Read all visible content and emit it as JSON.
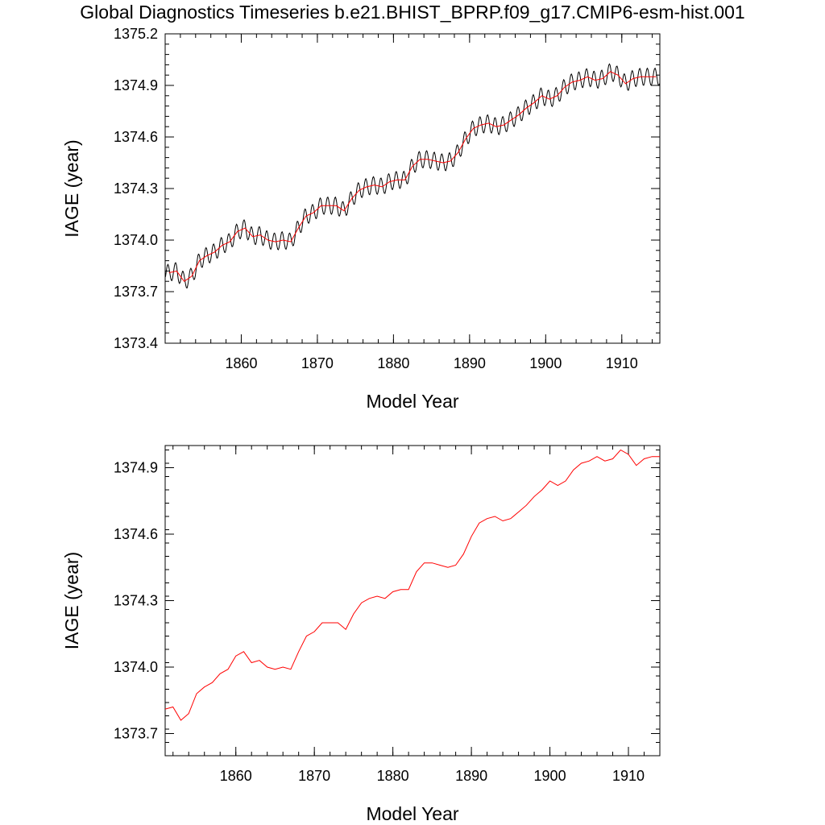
{
  "title": "Global Diagnostics Timeseries b.e21.BHIST_BPRP.f09_g17.CMIP6-esm-hist.001",
  "colors": {
    "monthly_line": "#000000",
    "annual_line": "#ff0000",
    "axes": "#000000",
    "background": "#ffffff"
  },
  "chart_data": [
    {
      "type": "line",
      "title": "",
      "xlabel": "Model Year",
      "ylabel": "IAGE (year)",
      "xlim": [
        1850,
        1915
      ],
      "ylim": [
        1373.4,
        1375.2
      ],
      "xticks": [
        1860,
        1870,
        1880,
        1890,
        1900,
        1910
      ],
      "xtick_labels": [
        "1860",
        "1870",
        "1880",
        "1890",
        "1900",
        "1910"
      ],
      "yticks": [
        1373.4,
        1373.7,
        1374.0,
        1374.3,
        1374.6,
        1374.9,
        1375.2
      ],
      "ytick_labels": [
        "1373.4",
        "1373.7",
        "1374.0",
        "1374.3",
        "1374.6",
        "1374.9",
        "1375.2"
      ],
      "grid": false,
      "legend": "none",
      "series": [
        {
          "color": "#000000",
          "kind": "monthly",
          "seasonal_amplitude": 0.05,
          "x": [
            1850.5,
            1851.5,
            1852.5,
            1853.5,
            1854.5,
            1855.5,
            1856.5,
            1857.5,
            1858.5,
            1859.5,
            1860.5,
            1861.5,
            1862.5,
            1863.5,
            1864.5,
            1865.5,
            1866.5,
            1867.5,
            1868.5,
            1869.5,
            1870.5,
            1871.5,
            1872.5,
            1873.5,
            1874.5,
            1875.5,
            1876.5,
            1877.5,
            1878.5,
            1879.5,
            1880.5,
            1881.5,
            1882.5,
            1883.5,
            1884.5,
            1885.5,
            1886.5,
            1887.5,
            1888.5,
            1889.5,
            1890.5,
            1891.5,
            1892.5,
            1893.5,
            1894.5,
            1895.5,
            1896.5,
            1897.5,
            1898.5,
            1899.5,
            1900.5,
            1901.5,
            1902.5,
            1903.5,
            1904.5,
            1905.5,
            1906.5,
            1907.5,
            1908.5,
            1909.5,
            1910.5,
            1911.5,
            1912.5,
            1913.5,
            1914.5
          ],
          "annual_base": [
            1373.81,
            1373.82,
            1373.76,
            1373.79,
            1373.88,
            1373.91,
            1373.93,
            1373.97,
            1373.99,
            1374.05,
            1374.07,
            1374.02,
            1374.03,
            1374.0,
            1373.99,
            1374.0,
            1373.99,
            1374.07,
            1374.14,
            1374.16,
            1374.2,
            1374.2,
            1374.2,
            1374.17,
            1374.24,
            1374.29,
            1374.31,
            1374.32,
            1374.31,
            1374.34,
            1374.35,
            1374.35,
            1374.43,
            1374.47,
            1374.47,
            1374.46,
            1374.45,
            1374.46,
            1374.51,
            1374.59,
            1374.65,
            1374.67,
            1374.68,
            1374.66,
            1374.67,
            1374.7,
            1374.73,
            1374.77,
            1374.8,
            1374.84,
            1374.82,
            1374.84,
            1374.89,
            1374.92,
            1374.93,
            1374.95,
            1374.93,
            1374.94,
            1374.98,
            1374.96,
            1374.91,
            1374.94,
            1374.95,
            1374.95,
            1374.95
          ]
        },
        {
          "color": "#ff0000",
          "kind": "annual_mean",
          "x": [
            1850.5,
            1851.5,
            1852.5,
            1853.5,
            1854.5,
            1855.5,
            1856.5,
            1857.5,
            1858.5,
            1859.5,
            1860.5,
            1861.5,
            1862.5,
            1863.5,
            1864.5,
            1865.5,
            1866.5,
            1867.5,
            1868.5,
            1869.5,
            1870.5,
            1871.5,
            1872.5,
            1873.5,
            1874.5,
            1875.5,
            1876.5,
            1877.5,
            1878.5,
            1879.5,
            1880.5,
            1881.5,
            1882.5,
            1883.5,
            1884.5,
            1885.5,
            1886.5,
            1887.5,
            1888.5,
            1889.5,
            1890.5,
            1891.5,
            1892.5,
            1893.5,
            1894.5,
            1895.5,
            1896.5,
            1897.5,
            1898.5,
            1899.5,
            1900.5,
            1901.5,
            1902.5,
            1903.5,
            1904.5,
            1905.5,
            1906.5,
            1907.5,
            1908.5,
            1909.5,
            1910.5,
            1911.5,
            1912.5,
            1913.5,
            1914.5
          ],
          "y": [
            1373.81,
            1373.82,
            1373.76,
            1373.79,
            1373.88,
            1373.91,
            1373.93,
            1373.97,
            1373.99,
            1374.05,
            1374.07,
            1374.02,
            1374.03,
            1374.0,
            1373.99,
            1374.0,
            1373.99,
            1374.07,
            1374.14,
            1374.16,
            1374.2,
            1374.2,
            1374.2,
            1374.17,
            1374.24,
            1374.29,
            1374.31,
            1374.32,
            1374.31,
            1374.34,
            1374.35,
            1374.35,
            1374.43,
            1374.47,
            1374.47,
            1374.46,
            1374.45,
            1374.46,
            1374.51,
            1374.59,
            1374.65,
            1374.67,
            1374.68,
            1374.66,
            1374.67,
            1374.7,
            1374.73,
            1374.77,
            1374.8,
            1374.84,
            1374.82,
            1374.84,
            1374.89,
            1374.92,
            1374.93,
            1374.95,
            1374.93,
            1374.94,
            1374.98,
            1374.96,
            1374.91,
            1374.94,
            1374.95,
            1374.95,
            1374.95
          ]
        }
      ]
    },
    {
      "type": "line",
      "title": "",
      "xlabel": "Model Year",
      "ylabel": "IAGE (year)",
      "xlim": [
        1851,
        1914
      ],
      "ylim": [
        1373.6,
        1375.0
      ],
      "xticks": [
        1860,
        1870,
        1880,
        1890,
        1900,
        1910
      ],
      "xtick_labels": [
        "1860",
        "1870",
        "1880",
        "1890",
        "1900",
        "1910"
      ],
      "yticks": [
        1373.7,
        1374.0,
        1374.3,
        1374.6,
        1374.9
      ],
      "ytick_labels": [
        "1373.7",
        "1374.0",
        "1374.3",
        "1374.6",
        "1374.9"
      ],
      "grid": false,
      "legend": "none",
      "series": [
        {
          "color": "#ff0000",
          "kind": "annual_mean",
          "x": [
            1851,
            1852,
            1853,
            1854,
            1855,
            1856,
            1857,
            1858,
            1859,
            1860,
            1861,
            1862,
            1863,
            1864,
            1865,
            1866,
            1867,
            1868,
            1869,
            1870,
            1871,
            1872,
            1873,
            1874,
            1875,
            1876,
            1877,
            1878,
            1879,
            1880,
            1881,
            1882,
            1883,
            1884,
            1885,
            1886,
            1887,
            1888,
            1889,
            1890,
            1891,
            1892,
            1893,
            1894,
            1895,
            1896,
            1897,
            1898,
            1899,
            1900,
            1901,
            1902,
            1903,
            1904,
            1905,
            1906,
            1907,
            1908,
            1909,
            1910,
            1911,
            1912,
            1913,
            1914
          ],
          "y": [
            1373.81,
            1373.82,
            1373.76,
            1373.79,
            1373.88,
            1373.91,
            1373.93,
            1373.97,
            1373.99,
            1374.05,
            1374.07,
            1374.02,
            1374.03,
            1374.0,
            1373.99,
            1374.0,
            1373.99,
            1374.07,
            1374.14,
            1374.16,
            1374.2,
            1374.2,
            1374.2,
            1374.17,
            1374.24,
            1374.29,
            1374.31,
            1374.32,
            1374.31,
            1374.34,
            1374.35,
            1374.35,
            1374.43,
            1374.47,
            1374.47,
            1374.46,
            1374.45,
            1374.46,
            1374.51,
            1374.59,
            1374.65,
            1374.67,
            1374.68,
            1374.66,
            1374.67,
            1374.7,
            1374.73,
            1374.77,
            1374.8,
            1374.84,
            1374.82,
            1374.84,
            1374.89,
            1374.92,
            1374.93,
            1374.95,
            1374.93,
            1374.94,
            1374.98,
            1374.96,
            1374.91,
            1374.94,
            1374.95,
            1374.95
          ]
        }
      ]
    }
  ]
}
